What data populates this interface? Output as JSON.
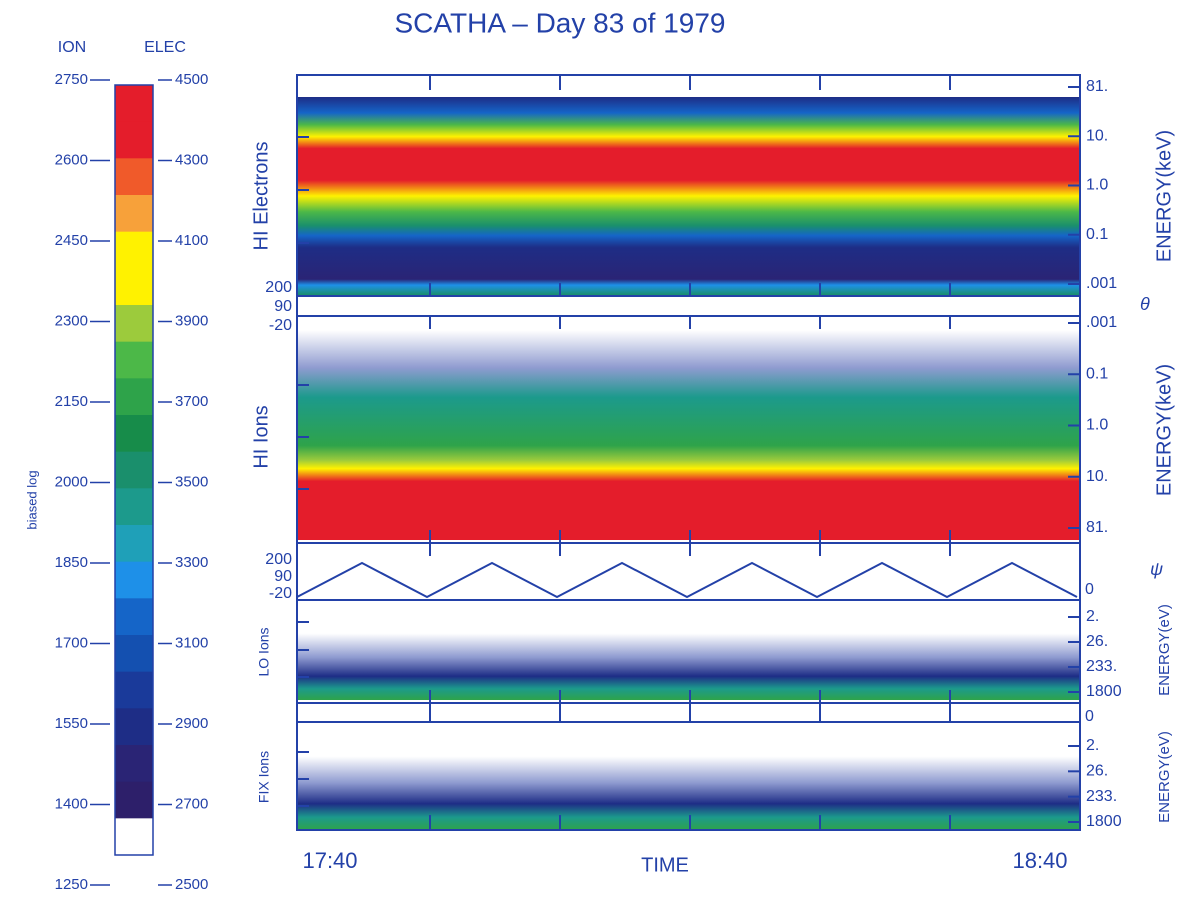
{
  "title": "SCATHA – Day 83 of 1979",
  "colorbar": {
    "ion_label": "ION",
    "elec_label": "ELEC",
    "side_label": "biased log",
    "ion_ticks": [
      "2750",
      "2600",
      "2450",
      "2300",
      "2150",
      "2000",
      "1850",
      "1700",
      "1550",
      "1400",
      "1250"
    ],
    "elec_ticks": [
      "4500",
      "4300",
      "4100",
      "3900",
      "3700",
      "3500",
      "3300",
      "3100",
      "2900",
      "2700",
      "2500"
    ],
    "colors": [
      "#e41d2b",
      "#e41d2b",
      "#f05a2a",
      "#f7a13a",
      "#fff200",
      "#fff200",
      "#9ccb3c",
      "#4cb848",
      "#2ea34a",
      "#178c4a",
      "#1a8f6c",
      "#1c9a8c",
      "#1fa0b8",
      "#1e90e8",
      "#1565c8",
      "#1450b0",
      "#1a3a9a",
      "#1e2d86",
      "#2a2475",
      "#2d1f6a",
      "#ffffff"
    ]
  },
  "panels": [
    {
      "name": "HI Electrons",
      "left_label": "200",
      "axis_label": "ENERGY(keV)",
      "energy_ticks": [
        "81.",
        "10.",
        "1.0",
        "0.1",
        ".001"
      ]
    },
    {
      "labels": [
        "90",
        "-20"
      ],
      "symbol": "θ"
    },
    {
      "name": "HI Ions",
      "axis_label": "ENERGY(keV)",
      "energy_ticks": [
        ".001",
        "0.1",
        "1.0",
        "10.",
        "81."
      ]
    },
    {
      "labels": [
        "200",
        "90",
        "-20"
      ],
      "right_label": "0",
      "symbol": "ψ"
    },
    {
      "name": "LO Ions",
      "axis_label": "ENERGY(eV)",
      "energy_ticks": [
        "2.",
        "26.",
        "233.",
        "1800"
      ]
    },
    {
      "right_label": "0"
    },
    {
      "name": "FIX Ions",
      "axis_label": "ENERGY(eV)",
      "energy_ticks": [
        "2.",
        "26.",
        "233.",
        "1800"
      ]
    }
  ],
  "time_axis": {
    "start": "17:40",
    "label": "TIME",
    "end": "18:40"
  }
}
